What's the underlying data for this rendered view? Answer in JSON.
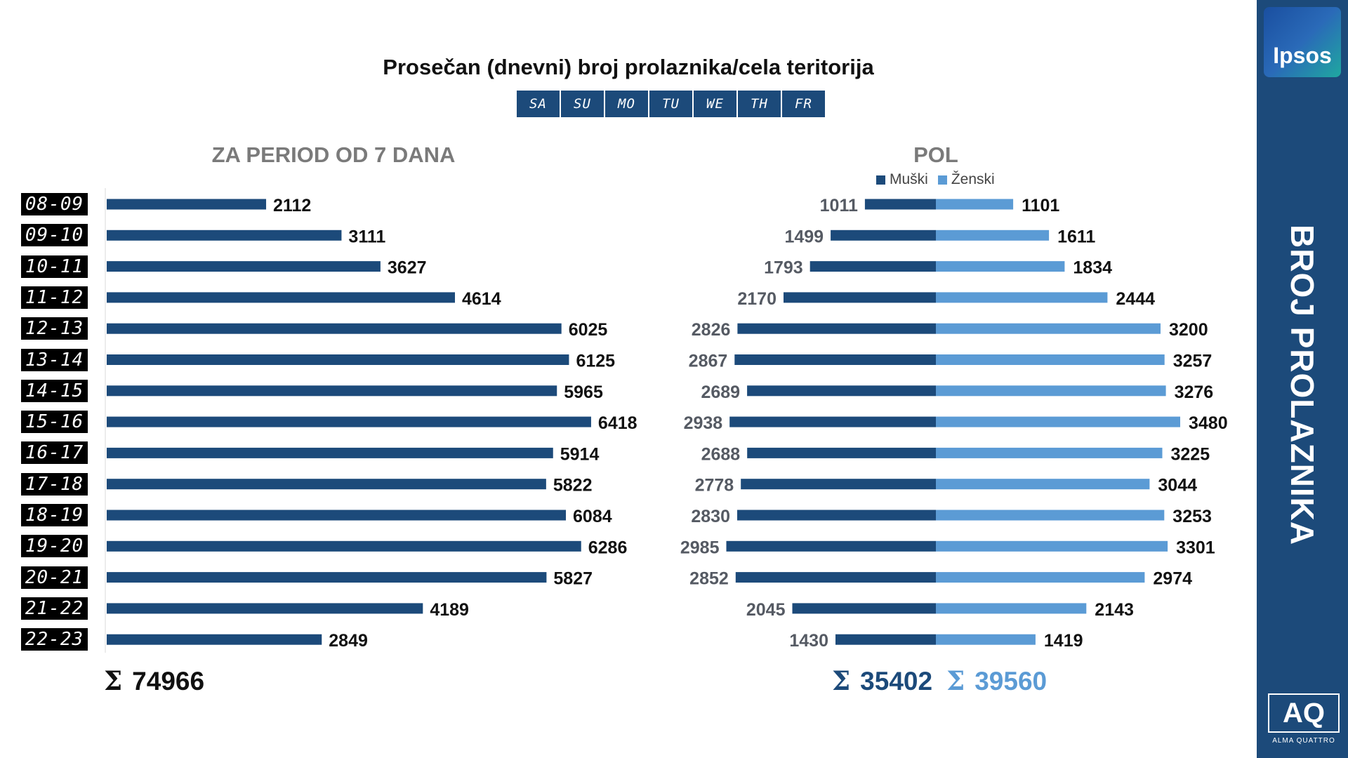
{
  "title": "Prosečan (dnevni) broj prolaznika/cela teritorija",
  "days": [
    "SA",
    "SU",
    "MO",
    "TU",
    "WE",
    "TH",
    "FR"
  ],
  "left_section_title": "ZA PERIOD OD 7 DANA",
  "right_section_title": "POL",
  "legend": {
    "male": "Muški",
    "female": "Ženski"
  },
  "totals": {
    "sigma": "Σ",
    "overall": "74966",
    "male": "35402",
    "female": "39560"
  },
  "side_panel": {
    "brand": "Ipsos",
    "vertical_title": "BROJ PROLAZNIKA",
    "aq_logo": "AQ",
    "aq_subtext": "ALMA QUATTRO"
  },
  "colors": {
    "dark_blue": "#1c4a7a",
    "light_blue": "#5b9bd5"
  },
  "chart_data": [
    {
      "type": "bar",
      "orientation": "horizontal",
      "title": "ZA PERIOD OD 7 DANA",
      "categories": [
        "08-09",
        "09-10",
        "10-11",
        "11-12",
        "12-13",
        "13-14",
        "14-15",
        "15-16",
        "16-17",
        "17-18",
        "18-19",
        "19-20",
        "20-21",
        "21-22",
        "22-23"
      ],
      "values": [
        2112,
        3111,
        3627,
        4614,
        6025,
        6125,
        5965,
        6418,
        5914,
        5822,
        6084,
        6286,
        5827,
        4189,
        2849
      ]
    },
    {
      "type": "bar",
      "orientation": "horizontal-diverging",
      "title": "POL",
      "categories": [
        "08-09",
        "09-10",
        "10-11",
        "11-12",
        "12-13",
        "13-14",
        "14-15",
        "15-16",
        "16-17",
        "17-18",
        "18-19",
        "19-20",
        "20-21",
        "21-22",
        "22-23"
      ],
      "series": [
        {
          "name": "Muški",
          "values": [
            1011,
            1499,
            1793,
            2170,
            2826,
            2867,
            2689,
            2938,
            2688,
            2778,
            2830,
            2985,
            2852,
            2045,
            1430
          ]
        },
        {
          "name": "Ženski",
          "values": [
            1101,
            1611,
            1834,
            2444,
            3200,
            3257,
            3276,
            3480,
            3225,
            3044,
            3253,
            3301,
            2974,
            2143,
            1419
          ]
        }
      ],
      "legend_position": "top"
    }
  ]
}
